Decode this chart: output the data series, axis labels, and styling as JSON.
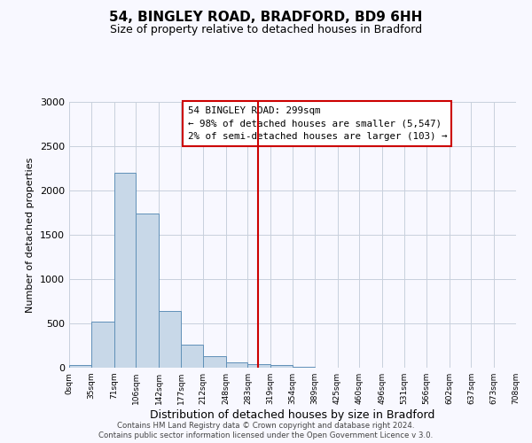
{
  "title": "54, BINGLEY ROAD, BRADFORD, BD9 6HH",
  "subtitle": "Size of property relative to detached houses in Bradford",
  "xlabel": "Distribution of detached houses by size in Bradford",
  "ylabel": "Number of detached properties",
  "bin_edges": [
    0,
    35,
    71,
    106,
    142,
    177,
    212,
    248,
    283,
    319,
    354,
    389,
    425,
    460,
    496,
    531,
    566,
    602,
    637,
    673,
    708
  ],
  "bar_heights": [
    30,
    520,
    2200,
    1740,
    640,
    265,
    130,
    65,
    40,
    30,
    10,
    5,
    2,
    2,
    2,
    1,
    1,
    0,
    0,
    0
  ],
  "tick_labels": [
    "0sqm",
    "35sqm",
    "71sqm",
    "106sqm",
    "142sqm",
    "177sqm",
    "212sqm",
    "248sqm",
    "283sqm",
    "319sqm",
    "354sqm",
    "389sqm",
    "425sqm",
    "460sqm",
    "496sqm",
    "531sqm",
    "566sqm",
    "602sqm",
    "637sqm",
    "673sqm",
    "708sqm"
  ],
  "bar_color": "#c8d8e8",
  "bar_edge_color": "#6090b8",
  "vline_x": 299,
  "vline_color": "#cc0000",
  "annotation_line1": "54 BINGLEY ROAD: 299sqm",
  "annotation_line2": "← 98% of detached houses are smaller (5,547)",
  "annotation_line3": "2% of semi-detached houses are larger (103) →",
  "ylim": [
    0,
    3000
  ],
  "footer1": "Contains HM Land Registry data © Crown copyright and database right 2024.",
  "footer2": "Contains public sector information licensed under the Open Government Licence v 3.0.",
  "background_color": "#f8f8ff",
  "grid_color": "#c8d0dc"
}
